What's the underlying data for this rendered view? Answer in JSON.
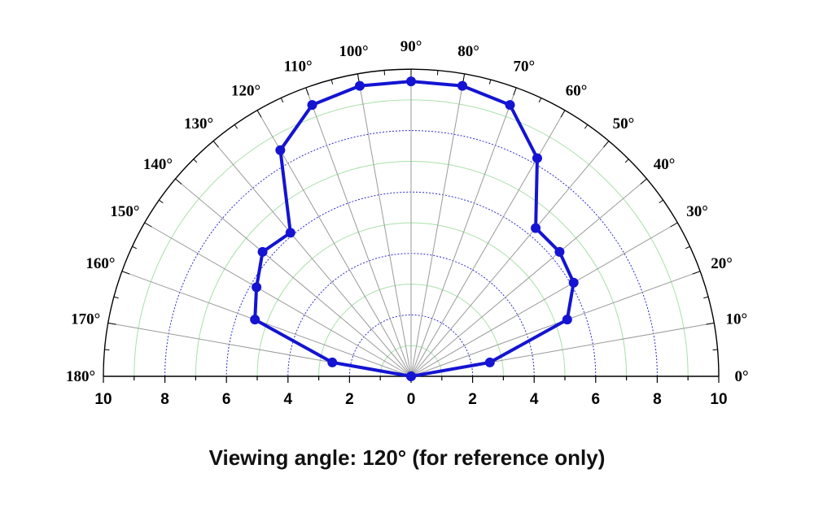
{
  "caption": "Viewing angle: 120° (for reference only)",
  "chart_data": {
    "type": "polar-line",
    "angular_range_deg": [
      0,
      180
    ],
    "radial_range": [
      0,
      10
    ],
    "angle_ticks": [
      "0°",
      "10°",
      "20°",
      "30°",
      "40°",
      "50°",
      "60°",
      "70°",
      "80°",
      "90°",
      "100°",
      "110°",
      "120°",
      "130°",
      "140°",
      "150°",
      "160°",
      "170°",
      "180°"
    ],
    "angle_tick_values": [
      0,
      10,
      20,
      30,
      40,
      50,
      60,
      70,
      80,
      90,
      100,
      110,
      120,
      130,
      140,
      150,
      160,
      170,
      180
    ],
    "radial_tick_labels": [
      "10",
      "8",
      "6",
      "4",
      "2",
      "0",
      "2",
      "4",
      "6",
      "8",
      "10"
    ],
    "radial_tick_values": [
      -10,
      -8,
      -6,
      -4,
      -2,
      0,
      2,
      4,
      6,
      8,
      10
    ],
    "grid": true,
    "colors": {
      "series": "#1414d2",
      "dotted_grid": "#2a2ad0",
      "minor_grid": "#a8e0a8",
      "spoke": "#9a9a9a"
    },
    "series": [
      {
        "angles": [
          0,
          10,
          20,
          30,
          40,
          50,
          60,
          70,
          80,
          90,
          100,
          110,
          120,
          130,
          140,
          150,
          160,
          170,
          180
        ],
        "values": [
          0,
          2.6,
          5.4,
          6.1,
          6.3,
          6.3,
          8.2,
          9.4,
          9.6,
          9.6,
          9.6,
          9.4,
          8.5,
          6.1,
          6.3,
          5.8,
          5.4,
          2.6,
          0
        ]
      }
    ]
  }
}
